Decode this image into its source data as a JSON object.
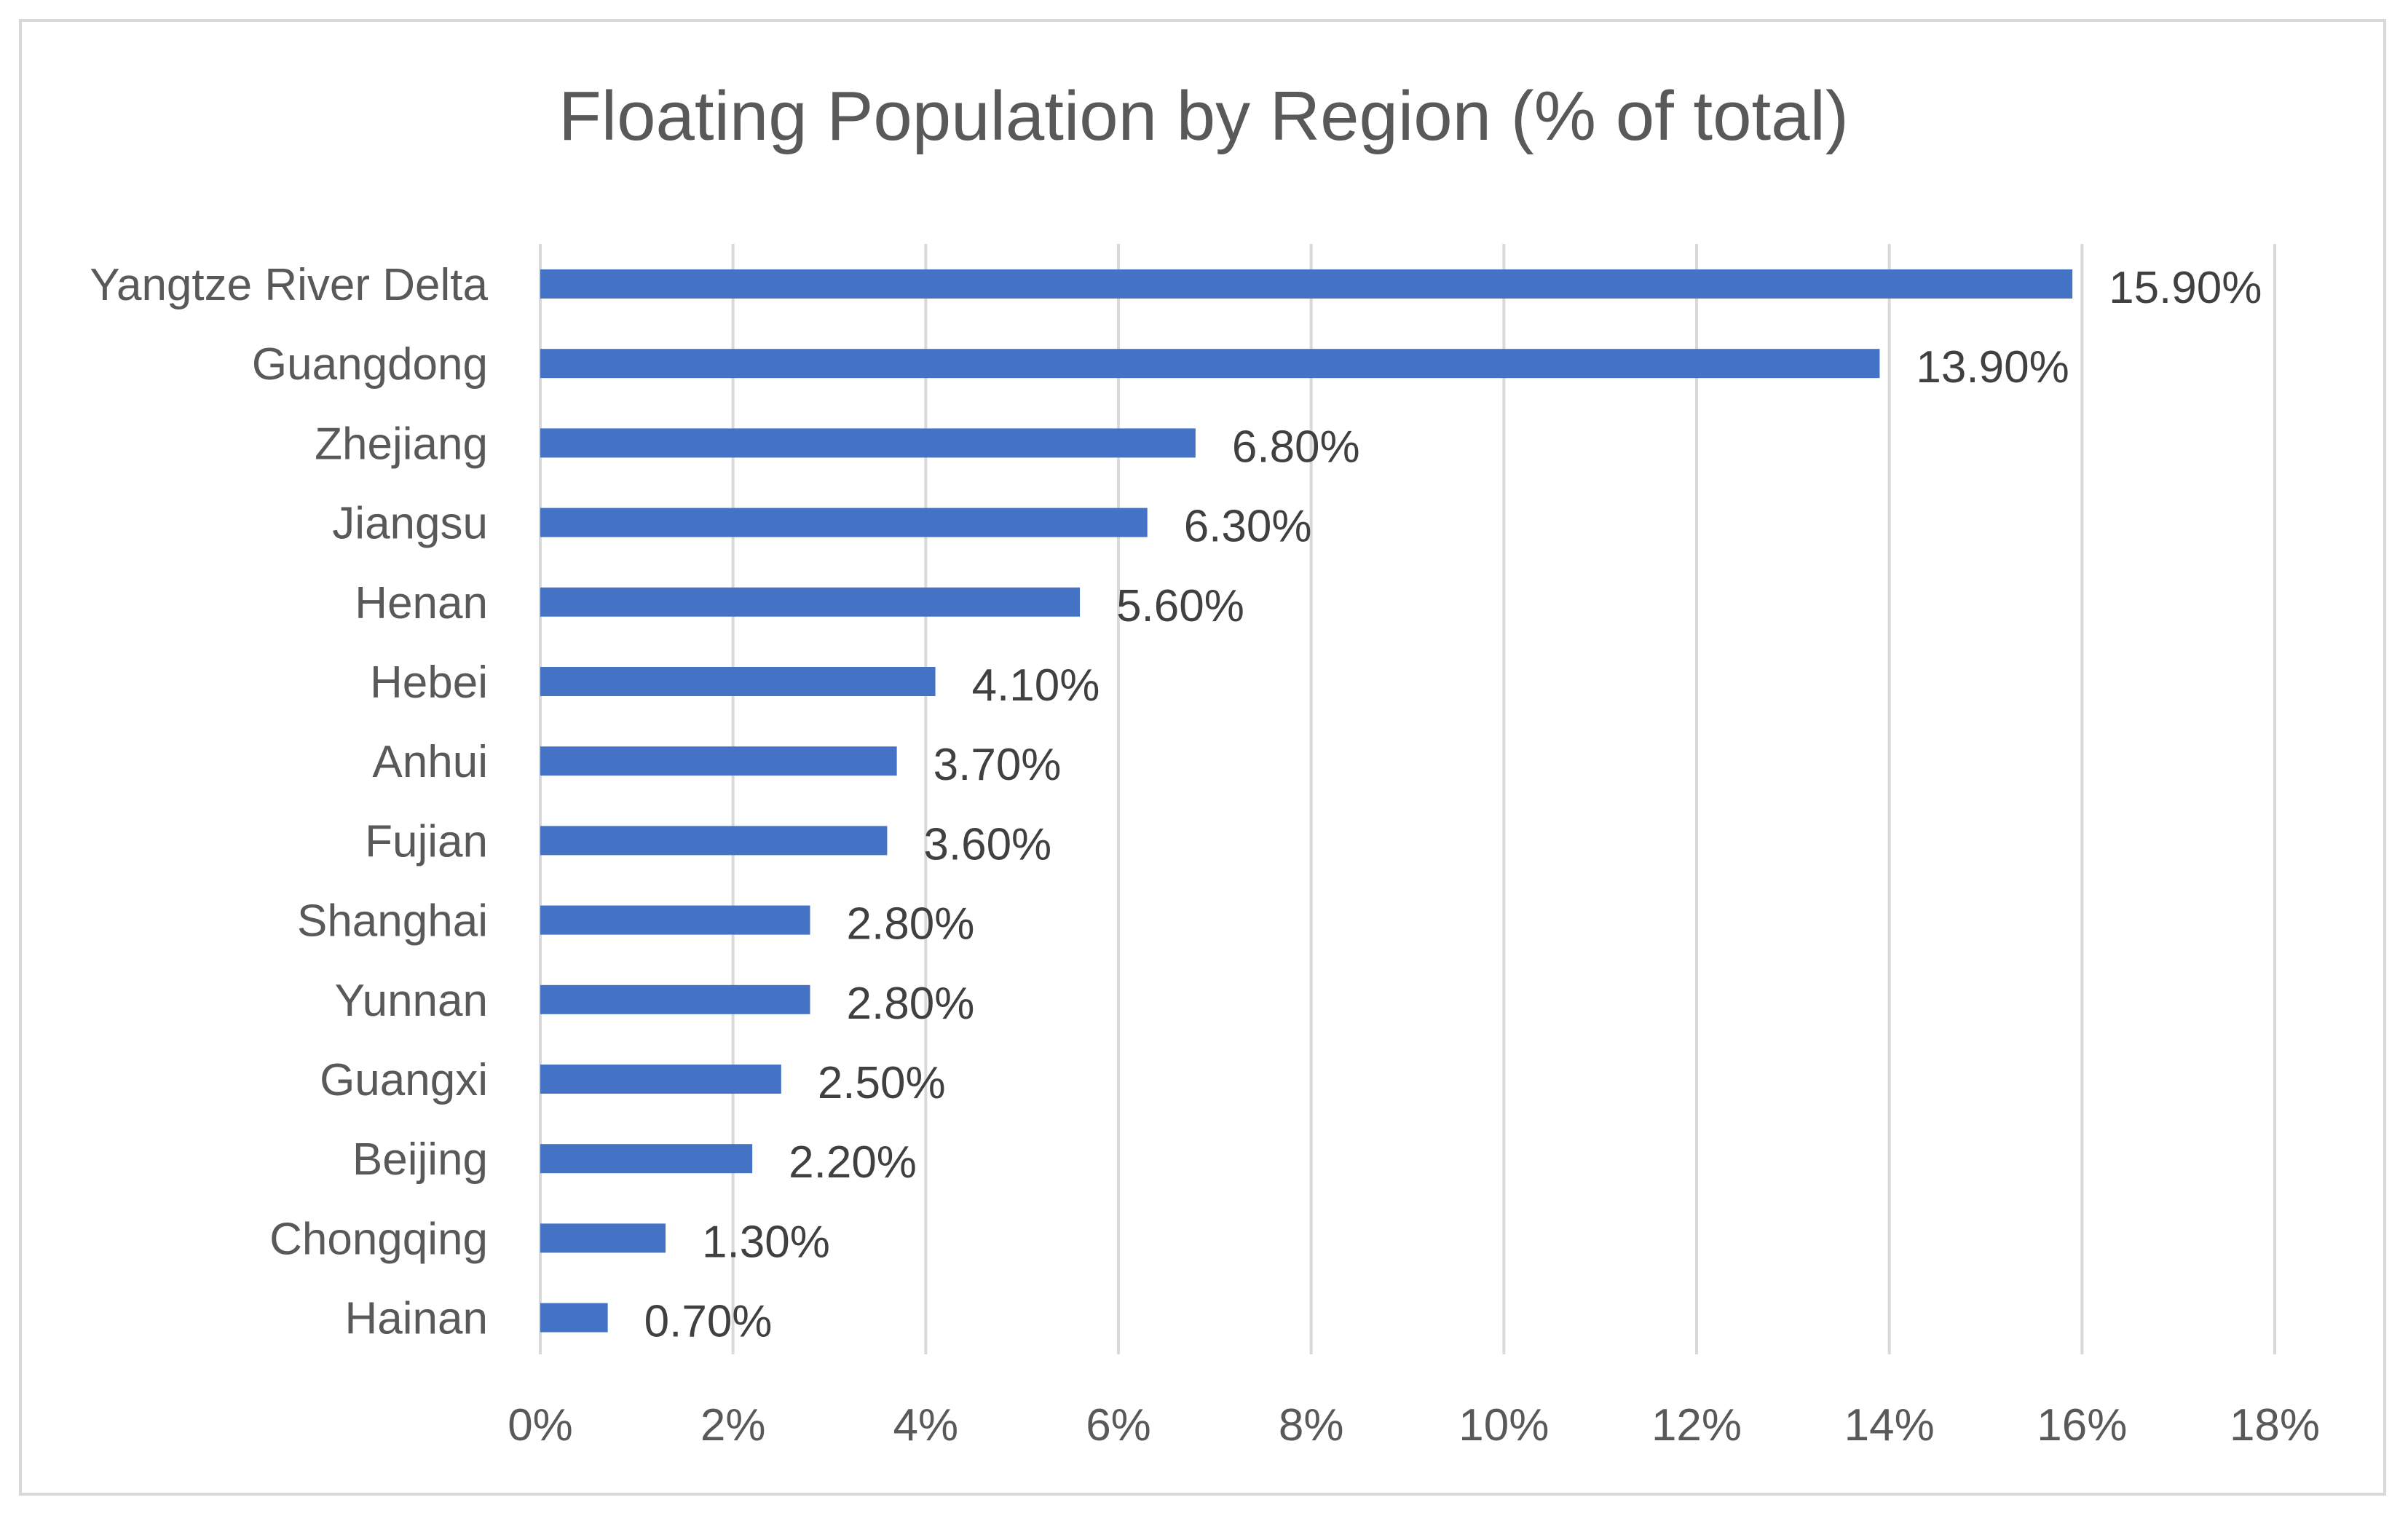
{
  "chart_data": {
    "type": "bar",
    "orientation": "horizontal",
    "title": "Floating Population by Region (% of total)",
    "xlabel": "",
    "ylabel": "",
    "categories": [
      "Yangtze River Delta",
      "Guangdong",
      "Zhejiang",
      "Jiangsu",
      "Henan",
      "Hebei",
      "Anhui",
      "Fujian",
      "Shanghai",
      "Yunnan",
      "Guangxi",
      "Beijing",
      "Chongqing",
      "Hainan"
    ],
    "values": [
      15.9,
      13.9,
      6.8,
      6.3,
      5.6,
      4.1,
      3.7,
      3.6,
      2.8,
      2.8,
      2.5,
      2.2,
      1.3,
      0.7
    ],
    "value_labels": [
      "15.90%",
      "13.90%",
      "6.80%",
      "6.30%",
      "5.60%",
      "4.10%",
      "3.70%",
      "3.60%",
      "2.80%",
      "2.80%",
      "2.50%",
      "2.20%",
      "1.30%",
      "0.70%"
    ],
    "xlim": [
      0,
      18
    ],
    "x_ticks": [
      0,
      2,
      4,
      6,
      8,
      10,
      12,
      14,
      16,
      18
    ],
    "x_tick_labels": [
      "0%",
      "2%",
      "4%",
      "6%",
      "8%",
      "10%",
      "12%",
      "14%",
      "16%",
      "18%"
    ],
    "grid": true,
    "legend": "none"
  },
  "colors": {
    "bar": "#4472c4",
    "gridline": "#d9d9d9",
    "axis_text": "#595959",
    "data_label_text": "#404040",
    "title_text": "#595959"
  }
}
